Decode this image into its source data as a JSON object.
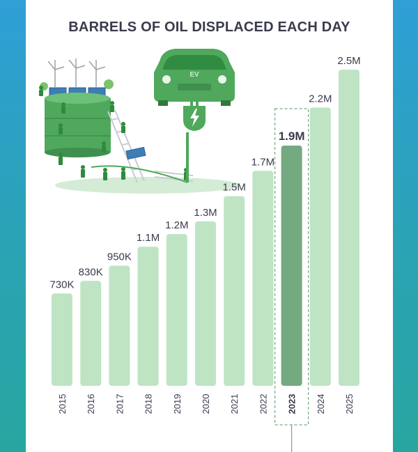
{
  "chart_data": {
    "type": "bar",
    "title": "BARRELS OF OIL DISPLACED EACH DAY",
    "categories": [
      "2015",
      "2016",
      "2017",
      "2018",
      "2019",
      "2020",
      "2021",
      "2022",
      "2023",
      "2024",
      "2025"
    ],
    "values": [
      730000,
      830000,
      950000,
      1100000,
      1200000,
      1300000,
      1500000,
      1700000,
      1900000,
      2200000,
      2500000
    ],
    "value_labels": [
      "730K",
      "830K",
      "950K",
      "1.1M",
      "1.2M",
      "1.3M",
      "1.5M",
      "1.7M",
      "1.9M",
      "2.2M",
      "2.5M"
    ],
    "highlight": "2023",
    "ylim": [
      0,
      2500000
    ],
    "xlabel": "",
    "ylabel": "",
    "grid": false,
    "colors": {
      "bar": "#bfe4c4",
      "highlight_bar": "#74aa80",
      "text": "#3a3b4c"
    }
  },
  "illustration": {
    "icons": [
      "wind-turbine-icon",
      "solar-panel-icon",
      "oil-tank-icon",
      "ev-car-icon",
      "charging-plug-icon",
      "worker-icon",
      "ladder-icon"
    ],
    "ev_badge": "EV"
  }
}
